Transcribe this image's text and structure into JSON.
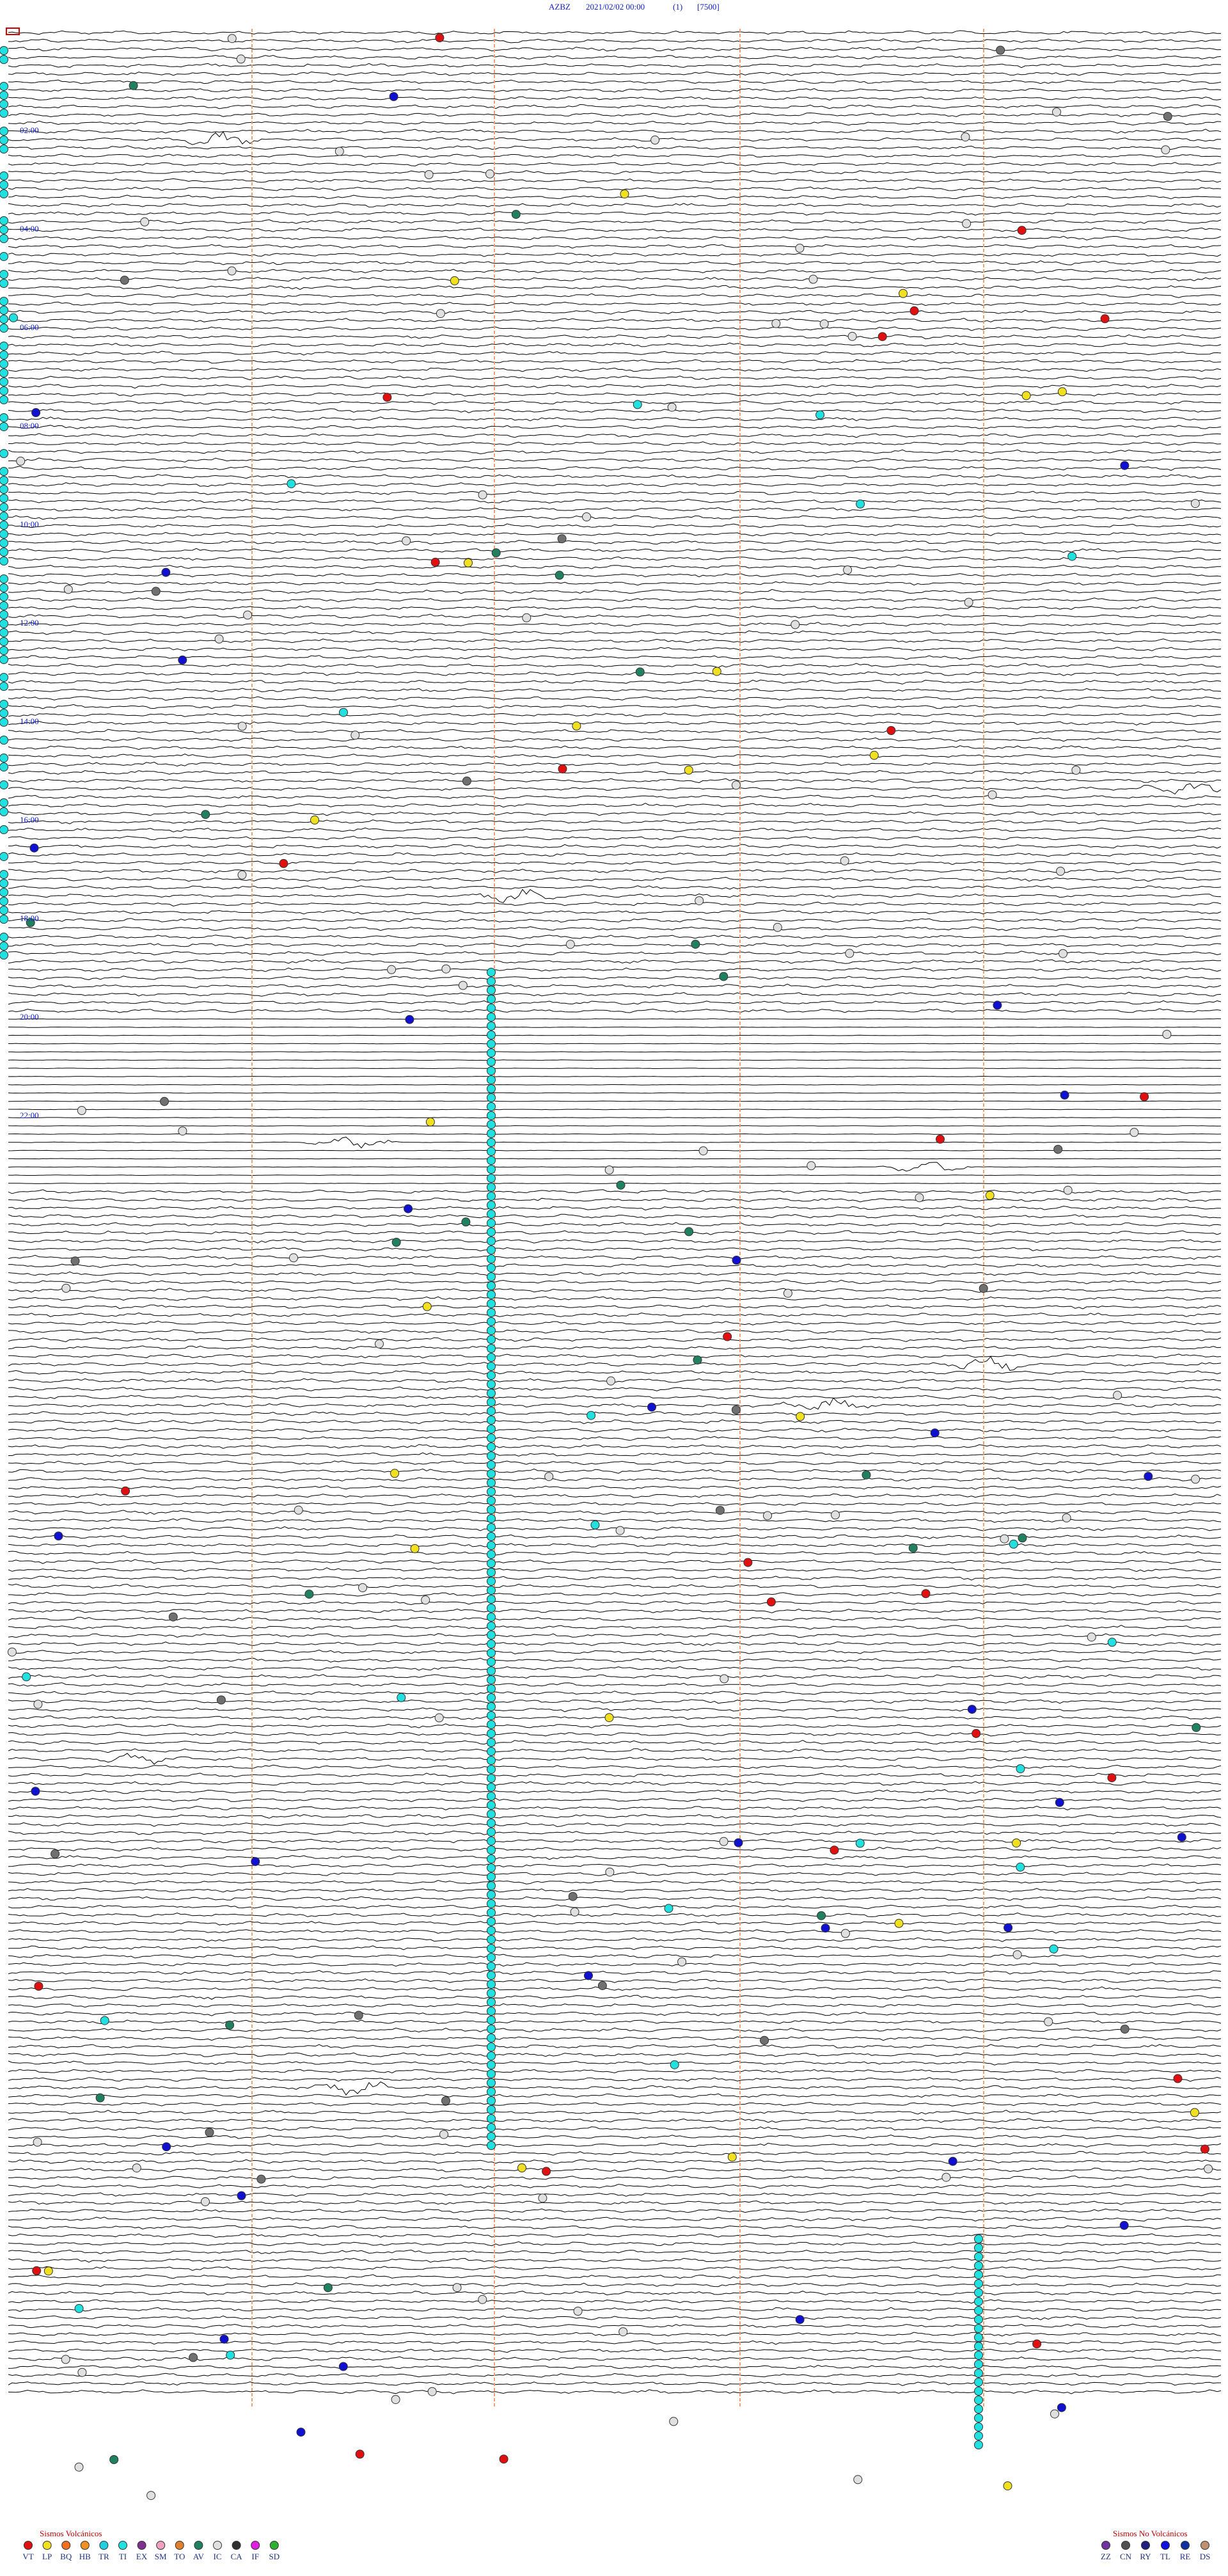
{
  "header": {
    "station": "AZBZ",
    "datetime": "2021/02/02 00:00",
    "channel": "(1)",
    "scale": "[7500]"
  },
  "time_labels": [
    "02:00",
    "04:00",
    "06:00",
    "08:00",
    "10:00",
    "12:00",
    "14:00",
    "16:00",
    "18:00",
    "20:00",
    "22:00"
  ],
  "legend": {
    "volcanic": {
      "title": "Sismos Volcánicos",
      "items": [
        {
          "label": "VT",
          "color": "#e01010"
        },
        {
          "label": "LP",
          "color": "#f0e020"
        },
        {
          "label": "BQ",
          "color": "#f07020"
        },
        {
          "label": "HB",
          "color": "#f09020"
        },
        {
          "label": "TR",
          "color": "#20d0e0"
        },
        {
          "label": "TI",
          "color": "#20e0e0"
        },
        {
          "label": "EX",
          "color": "#803090"
        },
        {
          "label": "SM",
          "color": "#f0a0c0"
        },
        {
          "label": "TO",
          "color": "#e08030"
        },
        {
          "label": "AV",
          "color": "#208060"
        },
        {
          "label": "IC",
          "color": "#e0e0e0"
        },
        {
          "label": "CA",
          "color": "#303030"
        },
        {
          "label": "IF",
          "color": "#e020e0"
        },
        {
          "label": "SD",
          "color": "#30b030"
        }
      ]
    },
    "non_volcanic": {
      "title": "Sismos No Volcánicos",
      "items": [
        {
          "label": "ZZ",
          "color": "#7030a0"
        },
        {
          "label": "CN",
          "color": "#505050"
        },
        {
          "label": "RY",
          "color": "#202080"
        },
        {
          "label": "TL",
          "color": "#1010e0"
        },
        {
          "label": "RE",
          "color": "#1030a0"
        },
        {
          "label": "DS",
          "color": "#c09070"
        }
      ]
    }
  }
}
